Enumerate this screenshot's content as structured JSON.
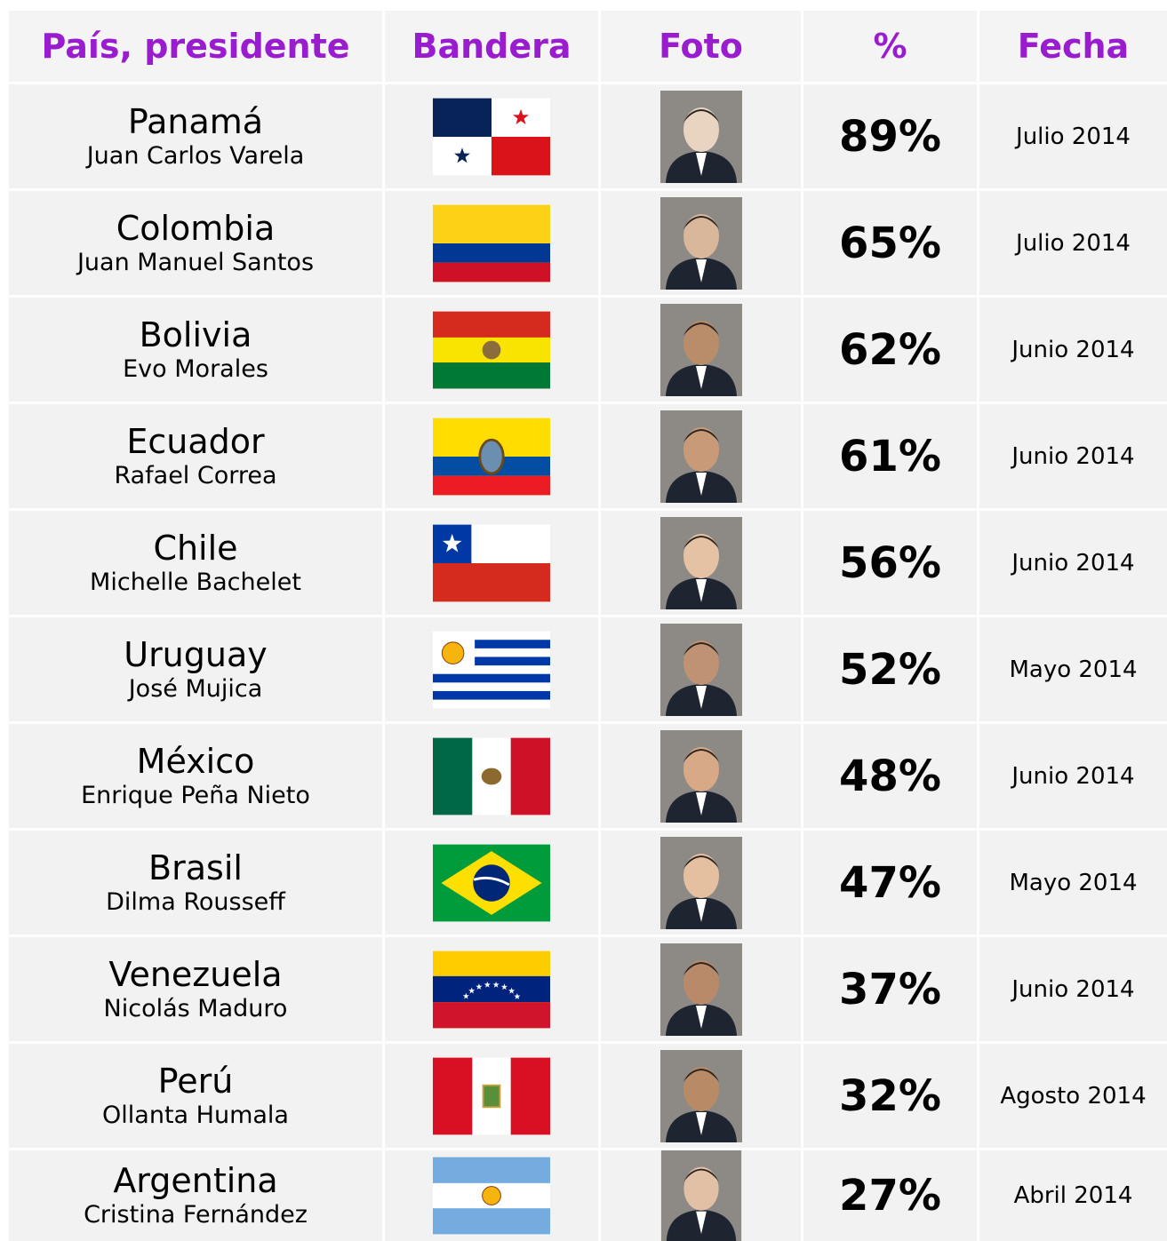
{
  "header": [
    "País, presidente",
    "Bandera",
    "Foto",
    "%",
    "Fecha"
  ],
  "rows": [
    {
      "country": "Panamá",
      "president": "Juan Carlos Varela",
      "percent": "89%",
      "date": "Julio 2014"
    },
    {
      "country": "Colombia",
      "president": "Juan Manuel Santos",
      "percent": "65%",
      "date": "Julio 2014"
    },
    {
      "country": "Bolivia",
      "president": "Evo Morales",
      "percent": "62%",
      "date": "Junio 2014"
    },
    {
      "country": "Ecuador",
      "president": "Rafael Correa",
      "percent": "61%",
      "date": "Junio 2014"
    },
    {
      "country": "Chile",
      "president": "Michelle Bachelet",
      "percent": "56%",
      "date": "Junio 2014"
    },
    {
      "country": "Uruguay",
      "president": "José Mujica",
      "percent": "52%",
      "date": "Mayo 2014"
    },
    {
      "country": "México",
      "president": "Enrique Peña Nieto",
      "percent": "48%",
      "date": "Junio 2014"
    },
    {
      "country": "Brasil",
      "president": "Dilma Rousseff",
      "percent": "47%",
      "date": "Mayo 2014"
    },
    {
      "country": "Venezuela",
      "president": "Nicolás Maduro",
      "percent": "37%",
      "date": "Junio 2014"
    },
    {
      "country": "Perú",
      "president": "Ollanta Humala",
      "percent": "32%",
      "date": "Agosto 2014"
    },
    {
      "country": "Argentina",
      "president": "Cristina Fernández",
      "percent": "27%",
      "date": "Abril 2014"
    }
  ]
}
